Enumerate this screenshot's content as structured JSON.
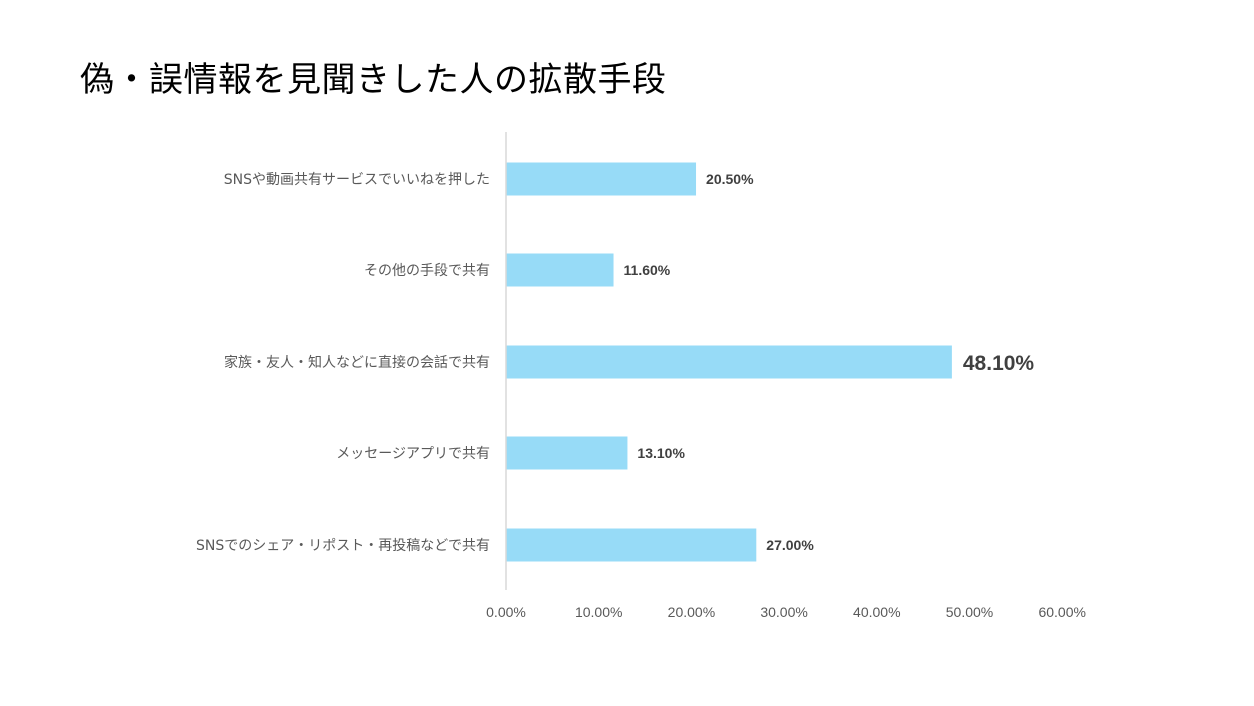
{
  "title": "偽・誤情報を見聞きした人の拡散手段",
  "chart_data": {
    "type": "bar",
    "orientation": "horizontal",
    "title": "偽・誤情報を見聞きした人の拡散手段",
    "xlabel": "",
    "ylabel": "",
    "categories": [
      "SNSや動画共有サービスでいいねを押した",
      "その他の手段で共有",
      "家族・友人・知人などに直接の会話で共有",
      "メッセージアプリで共有",
      "SNSでのシェア・リポスト・再投稿などで共有"
    ],
    "values": [
      20.5,
      11.6,
      48.1,
      13.1,
      27.0
    ],
    "data_labels": [
      "20.50%",
      "11.60%",
      "48.10%",
      "13.10%",
      "27.00%"
    ],
    "highlight_index": 2,
    "xlim": [
      0,
      60
    ],
    "ticks": [
      0,
      10,
      20,
      30,
      40,
      50,
      60
    ],
    "tick_labels": [
      "0.00%",
      "10.00%",
      "20.00%",
      "30.00%",
      "40.00%",
      "50.00%",
      "60.00%"
    ],
    "bar_color": "#97DBF7",
    "axis_color": "#D9D9D9",
    "grid": false,
    "legend": "none"
  }
}
